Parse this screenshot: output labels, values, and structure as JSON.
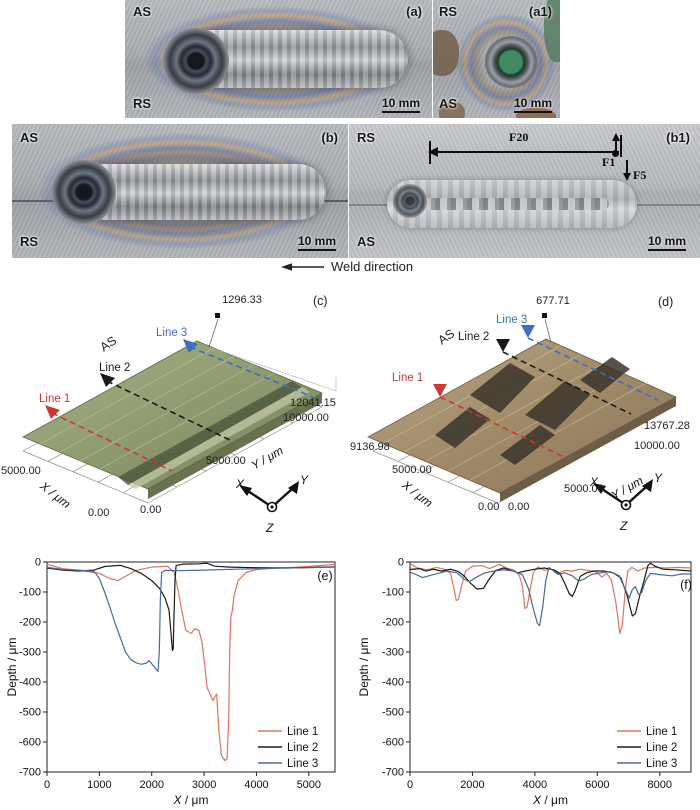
{
  "figure_colors": {
    "line1": "#E0735A",
    "line2": "#1A1A1A",
    "line3": "#4668A0",
    "red_arrow": "#C93B32",
    "blue_arrow": "#3A6FC4"
  },
  "photos": {
    "a": {
      "tag": "(a)",
      "top_left": "AS",
      "bottom_left": "RS",
      "scale_bar": "10 mm"
    },
    "a1": {
      "tag": "(a1)",
      "top_left": "RS",
      "bottom_left": "AS",
      "scale_bar": "10 mm"
    },
    "b": {
      "tag": "(b)",
      "top_left": "AS",
      "bottom_left": "RS",
      "scale_bar": "10 mm"
    },
    "b1": {
      "tag": "(b1)",
      "top_left": "RS",
      "bottom_left": "AS",
      "scale_bar": "10 mm",
      "force_labels": {
        "f20": "F20",
        "f1": "F1",
        "f5": "F5"
      }
    },
    "weld_direction": "Weld direction"
  },
  "surfaces": {
    "c": {
      "tag": "(c)",
      "z_max": "1296.33",
      "side": "AS",
      "line1": "Line 1",
      "line2": "Line 2",
      "line3": "Line 3",
      "y_ticks": [
        "12041.15",
        "10000.00",
        "5000.00",
        "0.00"
      ],
      "x_ticks": [
        "5000.00",
        "0.00"
      ],
      "x_label": "X / μm",
      "y_label": "Y / μm",
      "axes": {
        "x": "X",
        "y": "Y",
        "z": "Z"
      }
    },
    "d": {
      "tag": "(d)",
      "z_max": "677.71",
      "side": "AS",
      "line1": "Line 1",
      "line2": "Line 2",
      "line3": "Line 3",
      "y_ticks": [
        "13767.28",
        "10000.00",
        "5000.00",
        "0.00"
      ],
      "x_ticks": [
        "9136.98",
        "5000.00",
        "0.00"
      ],
      "x_label": "X / μm",
      "y_label": "Y / μm",
      "axes": {
        "x": "X",
        "y": "Y",
        "z": "Z"
      }
    }
  },
  "chart_data": [
    {
      "id": "e",
      "type": "line",
      "panel_tag": "(e)",
      "xlabel": "X / μm",
      "ylabel": "Depth / μm",
      "xlim": [
        0,
        5500
      ],
      "ylim": [
        -700,
        0
      ],
      "xticks": [
        0,
        1000,
        2000,
        3000,
        4000,
        5000
      ],
      "yticks": [
        0,
        -100,
        -200,
        -300,
        -400,
        -500,
        -600,
        -700
      ],
      "grid": false,
      "legend_position": "bottom-right",
      "series": [
        {
          "name": "Line 1",
          "color": "#E0735A",
          "points": [
            [
              0,
              -8
            ],
            [
              300,
              -22
            ],
            [
              700,
              -30
            ],
            [
              1000,
              -38
            ],
            [
              1200,
              -55
            ],
            [
              1350,
              -62
            ],
            [
              1500,
              -48
            ],
            [
              1700,
              -28
            ],
            [
              2000,
              -17
            ],
            [
              2300,
              -14
            ],
            [
              2430,
              -35
            ],
            [
              2500,
              -90
            ],
            [
              2560,
              -150
            ],
            [
              2650,
              -228
            ],
            [
              2760,
              -238
            ],
            [
              2820,
              -222
            ],
            [
              2900,
              -228
            ],
            [
              2960,
              -268
            ],
            [
              3010,
              -340
            ],
            [
              3060,
              -420
            ],
            [
              3120,
              -442
            ],
            [
              3170,
              -462
            ],
            [
              3210,
              -448
            ],
            [
              3240,
              -440
            ],
            [
              3280,
              -560
            ],
            [
              3330,
              -645
            ],
            [
              3400,
              -662
            ],
            [
              3440,
              -655
            ],
            [
              3470,
              -520
            ],
            [
              3490,
              -300
            ],
            [
              3510,
              -185
            ],
            [
              3540,
              -160
            ],
            [
              3570,
              -115
            ],
            [
              3650,
              -62
            ],
            [
              3800,
              -35
            ],
            [
              4000,
              -25
            ],
            [
              4400,
              -20
            ],
            [
              4800,
              -17
            ],
            [
              5200,
              -12
            ],
            [
              5500,
              -8
            ]
          ]
        },
        {
          "name": "Line 2",
          "color": "#1A1A1A",
          "points": [
            [
              0,
              -20
            ],
            [
              300,
              -27
            ],
            [
              600,
              -30
            ],
            [
              900,
              -27
            ],
            [
              1100,
              -15
            ],
            [
              1400,
              -11
            ],
            [
              1600,
              -22
            ],
            [
              1800,
              -38
            ],
            [
              2000,
              -62
            ],
            [
              2150,
              -88
            ],
            [
              2250,
              -118
            ],
            [
              2330,
              -160
            ],
            [
              2370,
              -240
            ],
            [
              2395,
              -295
            ],
            [
              2410,
              -290
            ],
            [
              2425,
              -180
            ],
            [
              2445,
              -60
            ],
            [
              2465,
              -12
            ],
            [
              2600,
              -7
            ],
            [
              2900,
              -6
            ],
            [
              3050,
              -4
            ],
            [
              3200,
              -14
            ],
            [
              3500,
              -17
            ],
            [
              4000,
              -19
            ],
            [
              4600,
              -20
            ],
            [
              5500,
              -16
            ]
          ]
        },
        {
          "name": "Line 3",
          "color": "#4668A0",
          "points": [
            [
              0,
              -18
            ],
            [
              300,
              -25
            ],
            [
              600,
              -27
            ],
            [
              900,
              -31
            ],
            [
              1000,
              -55
            ],
            [
              1100,
              -100
            ],
            [
              1200,
              -150
            ],
            [
              1300,
              -205
            ],
            [
              1400,
              -252
            ],
            [
              1500,
              -300
            ],
            [
              1600,
              -325
            ],
            [
              1700,
              -336
            ],
            [
              1800,
              -341
            ],
            [
              1900,
              -337
            ],
            [
              1950,
              -329
            ],
            [
              2000,
              -339
            ],
            [
              2070,
              -354
            ],
            [
              2120,
              -365
            ],
            [
              2145,
              -300
            ],
            [
              2165,
              -120
            ],
            [
              2190,
              -35
            ],
            [
              2260,
              -28
            ],
            [
              2500,
              -29
            ],
            [
              3000,
              -27
            ],
            [
              3600,
              -24
            ],
            [
              4300,
              -21
            ],
            [
              5000,
              -19
            ],
            [
              5500,
              -17
            ]
          ]
        }
      ]
    },
    {
      "id": "f",
      "type": "line",
      "panel_tag": "(f)",
      "xlabel": "X / μm",
      "ylabel": "Depth / μm",
      "xlim": [
        0,
        9000
      ],
      "ylim": [
        -700,
        0
      ],
      "xticks": [
        0,
        2000,
        4000,
        6000,
        8000
      ],
      "yticks": [
        0,
        -100,
        -200,
        -300,
        -400,
        -500,
        -600,
        -700
      ],
      "grid": false,
      "legend_position": "bottom-right",
      "series": [
        {
          "name": "Line 1",
          "color": "#E0735A",
          "points": [
            [
              0,
              -6
            ],
            [
              250,
              -20
            ],
            [
              550,
              -26
            ],
            [
              850,
              -18
            ],
            [
              1100,
              -24
            ],
            [
              1300,
              -38
            ],
            [
              1400,
              -85
            ],
            [
              1480,
              -128
            ],
            [
              1550,
              -125
            ],
            [
              1650,
              -80
            ],
            [
              1780,
              -30
            ],
            [
              2000,
              -14
            ],
            [
              2300,
              -12
            ],
            [
              2550,
              -22
            ],
            [
              2850,
              -8
            ],
            [
              3100,
              -20
            ],
            [
              3350,
              -28
            ],
            [
              3500,
              -45
            ],
            [
              3600,
              -80
            ],
            [
              3680,
              -155
            ],
            [
              3750,
              -150
            ],
            [
              3850,
              -90
            ],
            [
              3950,
              -35
            ],
            [
              4100,
              -16
            ],
            [
              4300,
              -28
            ],
            [
              4500,
              -22
            ],
            [
              4750,
              -38
            ],
            [
              4950,
              -28
            ],
            [
              5200,
              -30
            ],
            [
              5450,
              -24
            ],
            [
              5700,
              -28
            ],
            [
              5950,
              -32
            ],
            [
              6150,
              -50
            ],
            [
              6300,
              -38
            ],
            [
              6450,
              -60
            ],
            [
              6600,
              -140
            ],
            [
              6720,
              -238
            ],
            [
              6800,
              -210
            ],
            [
              6900,
              -90
            ],
            [
              6980,
              -30
            ],
            [
              7100,
              -18
            ],
            [
              7300,
              -30
            ],
            [
              7500,
              -20
            ],
            [
              7800,
              -18
            ],
            [
              8200,
              -20
            ],
            [
              8600,
              -18
            ],
            [
              9000,
              -20
            ]
          ]
        },
        {
          "name": "Line 2",
          "color": "#1A1A1A",
          "points": [
            [
              0,
              -25
            ],
            [
              300,
              -22
            ],
            [
              500,
              -30
            ],
            [
              750,
              -24
            ],
            [
              1000,
              -30
            ],
            [
              1300,
              -24
            ],
            [
              1550,
              -32
            ],
            [
              1750,
              -48
            ],
            [
              1950,
              -72
            ],
            [
              2150,
              -90
            ],
            [
              2350,
              -88
            ],
            [
              2550,
              -55
            ],
            [
              2750,
              -28
            ],
            [
              3000,
              -20
            ],
            [
              3250,
              -28
            ],
            [
              3450,
              -36
            ],
            [
              3700,
              -30
            ],
            [
              4000,
              -24
            ],
            [
              4300,
              -20
            ],
            [
              4600,
              -26
            ],
            [
              4800,
              -38
            ],
            [
              4950,
              -70
            ],
            [
              5100,
              -105
            ],
            [
              5200,
              -115
            ],
            [
              5300,
              -92
            ],
            [
              5450,
              -48
            ],
            [
              5650,
              -36
            ],
            [
              5900,
              -30
            ],
            [
              6200,
              -30
            ],
            [
              6500,
              -36
            ],
            [
              6750,
              -52
            ],
            [
              6950,
              -110
            ],
            [
              7120,
              -180
            ],
            [
              7220,
              -172
            ],
            [
              7350,
              -115
            ],
            [
              7500,
              -60
            ],
            [
              7620,
              -12
            ],
            [
              7700,
              -4
            ],
            [
              7850,
              -14
            ],
            [
              8100,
              -24
            ],
            [
              8500,
              -26
            ],
            [
              9000,
              -30
            ]
          ]
        },
        {
          "name": "Line 3",
          "color": "#4668A0",
          "points": [
            [
              0,
              -34
            ],
            [
              200,
              -42
            ],
            [
              400,
              -52
            ],
            [
              600,
              -46
            ],
            [
              900,
              -38
            ],
            [
              1200,
              -30
            ],
            [
              1500,
              -36
            ],
            [
              1750,
              -58
            ],
            [
              1900,
              -66
            ],
            [
              2100,
              -52
            ],
            [
              2400,
              -36
            ],
            [
              2700,
              -30
            ],
            [
              3000,
              -26
            ],
            [
              3300,
              -30
            ],
            [
              3600,
              -42
            ],
            [
              3800,
              -90
            ],
            [
              3950,
              -155
            ],
            [
              4080,
              -205
            ],
            [
              4150,
              -212
            ],
            [
              4250,
              -150
            ],
            [
              4350,
              -62
            ],
            [
              4450,
              -18
            ],
            [
              4600,
              -30
            ],
            [
              4750,
              -42
            ],
            [
              4950,
              -36
            ],
            [
              5200,
              -46
            ],
            [
              5400,
              -64
            ],
            [
              5600,
              -56
            ],
            [
              5800,
              -42
            ],
            [
              6100,
              -36
            ],
            [
              6400,
              -32
            ],
            [
              6700,
              -46
            ],
            [
              6900,
              -92
            ],
            [
              7020,
              -120
            ],
            [
              7120,
              -92
            ],
            [
              7220,
              -82
            ],
            [
              7320,
              -108
            ],
            [
              7420,
              -102
            ],
            [
              7550,
              -62
            ],
            [
              7700,
              -38
            ],
            [
              8000,
              -42
            ],
            [
              8400,
              -46
            ],
            [
              8700,
              -40
            ],
            [
              9000,
              -40
            ]
          ]
        }
      ]
    }
  ]
}
